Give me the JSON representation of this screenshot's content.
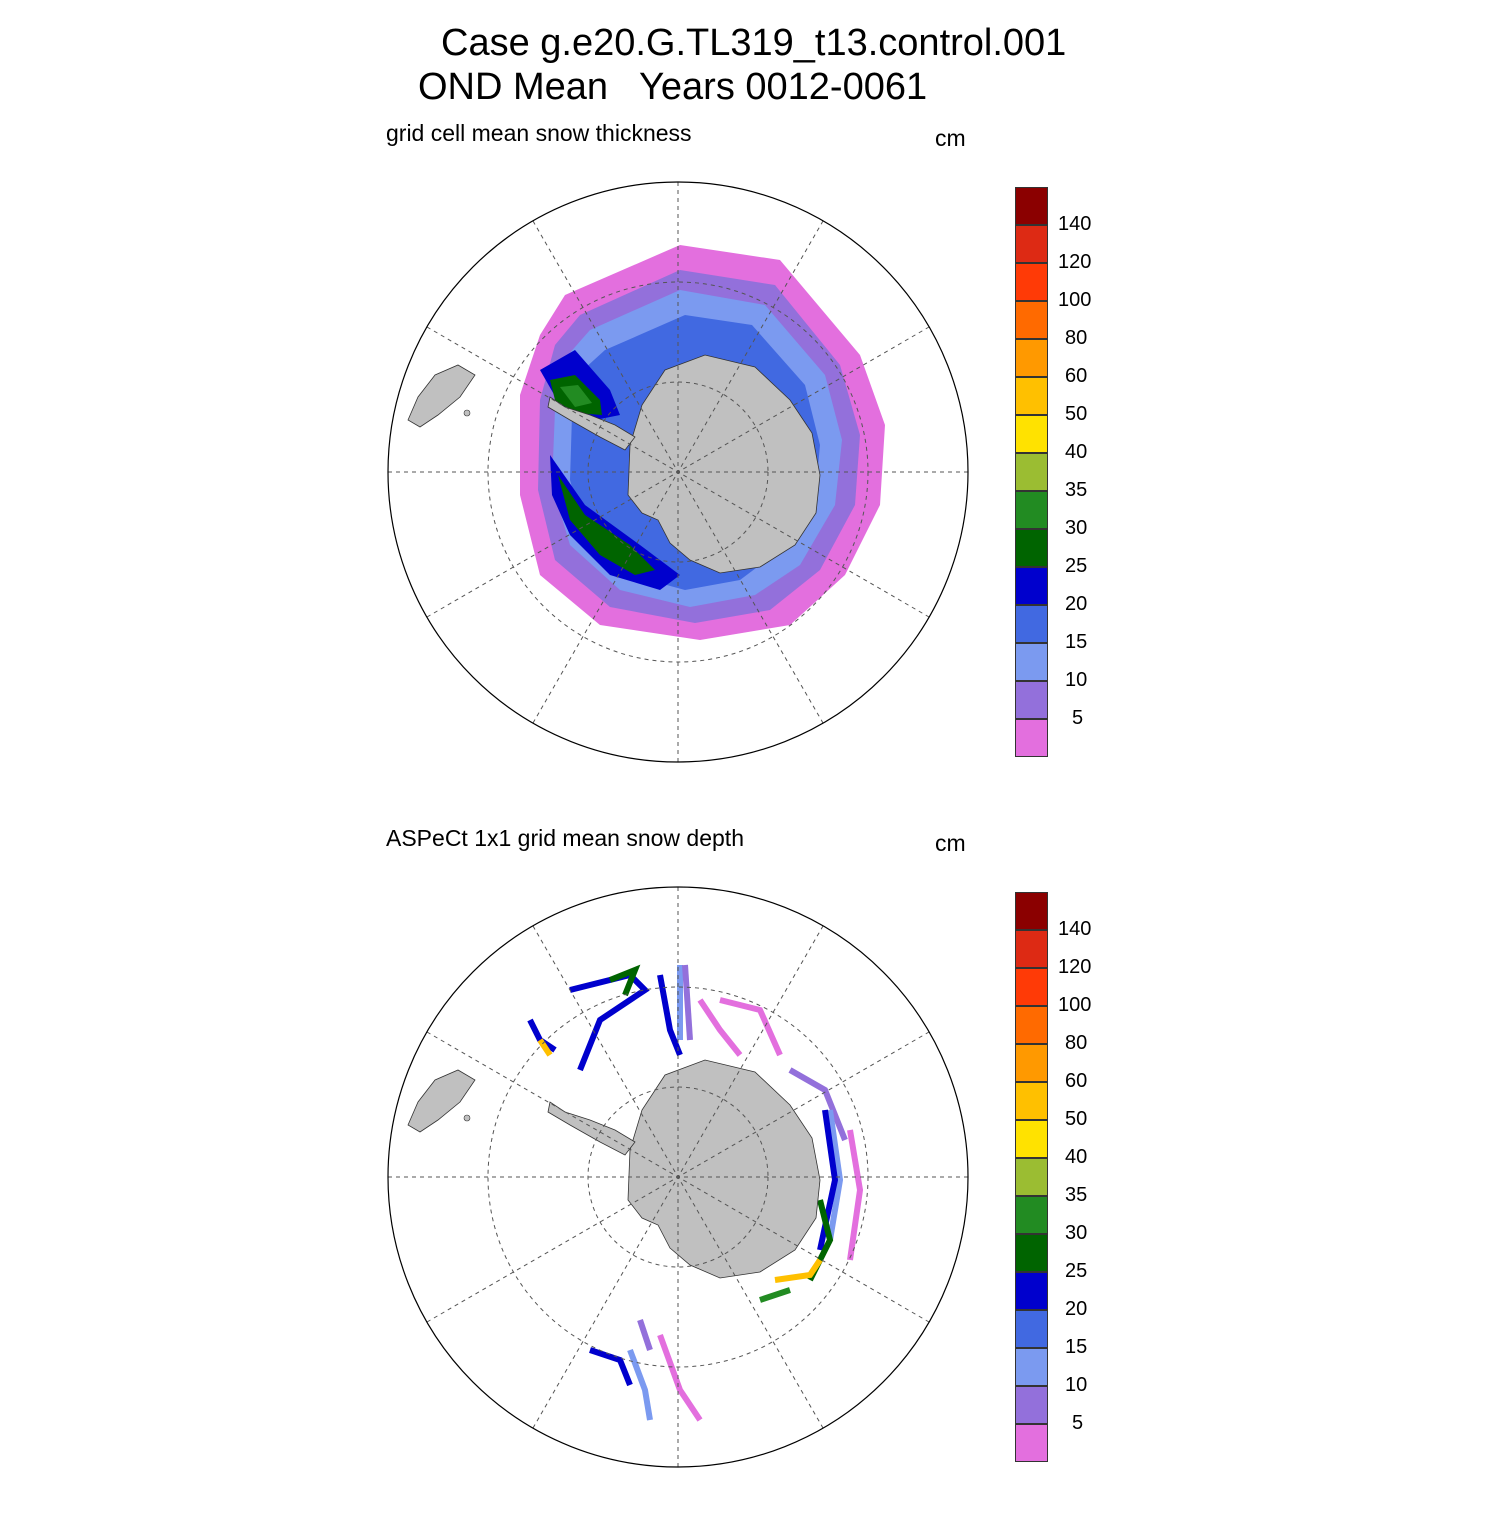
{
  "title": {
    "line1": "Case g.e20.G.TL319_t13.control.001",
    "line2": "OND Mean   Years 0012-0061"
  },
  "panels": [
    {
      "label": "grid cell mean snow thickness",
      "unit": "cm"
    },
    {
      "label": "ASPeCt 1x1 grid mean snow depth",
      "unit": "cm"
    }
  ],
  "colorbar": {
    "levels": [
      "140",
      "120",
      "100",
      "80",
      "60",
      "50",
      "40",
      "35",
      "30",
      "25",
      "20",
      "15",
      "10",
      "5"
    ],
    "colors": [
      "#8b0000",
      "#dd2a14",
      "#ff3a06",
      "#ff6a00",
      "#ff9900",
      "#ffc000",
      "#ffe200",
      "#9bbd32",
      "#228b22",
      "#006400",
      "#0000cd",
      "#4169e1",
      "#7b9af0",
      "#9370db",
      "#e36fde"
    ]
  },
  "colors": {
    "land": "#c0c0c0",
    "grid": "#555555"
  }
}
